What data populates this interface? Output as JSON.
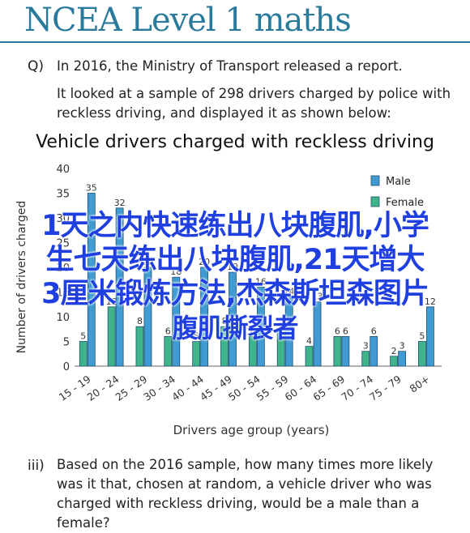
{
  "banner": {
    "title": "NCEA Level 1 maths"
  },
  "question": {
    "number": "Q)",
    "line1": "In 2016, the Ministry of Transport released a report.",
    "line2": "It looked at a sample of 298 drivers charged by police with reckless driving, and displayed it as shown below:"
  },
  "part3": {
    "number": "iii)",
    "text": "Based on the 2016 sample, how many times more likely was it that, chosen at random, a vehicle driver who was charged with reckless driving, would be a male than a female?"
  },
  "overlay": {
    "line1": "1天之内快速练出八块腹肌,小学",
    "line2": "生七天练出八块腹肌,21天增大",
    "line3": "3厘米锻炼方法,杰森斯坦森图片",
    "line4": "腹肌撕裂者"
  },
  "chart_data": {
    "type": "bar",
    "title": "Vehicle drivers charged with reckless driving",
    "xlabel": "Drivers age group (years)",
    "ylabel": "Number of drivers charged",
    "ylim": [
      0,
      40
    ],
    "yticks": [
      0,
      5,
      10,
      15,
      20,
      25,
      30,
      35,
      40
    ],
    "categories": [
      "15 - 19",
      "20 - 24",
      "25 - 29",
      "30 - 34",
      "40 - 44",
      "45 - 49",
      "50 - 54",
      "55 - 59",
      "60 - 64",
      "65 - 69",
      "70 - 74",
      "75 - 79",
      "80+"
    ],
    "series": [
      {
        "name": "Male",
        "color": "#3f9bd1",
        "values": [
          35,
          32,
          20,
          18,
          20,
          19,
          16,
          14,
          13,
          6,
          6,
          3,
          12
        ]
      },
      {
        "name": "Female",
        "color": "#3fb48a",
        "values": [
          5,
          12,
          8,
          6,
          5,
          8,
          6,
          7,
          4,
          6,
          3,
          2,
          5
        ]
      }
    ],
    "legend_position": "top-right",
    "grid": false
  }
}
